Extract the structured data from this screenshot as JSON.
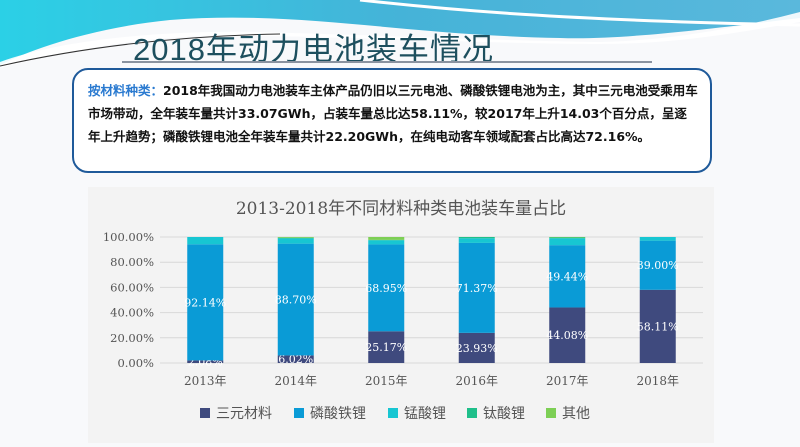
{
  "slide": {
    "title": "2018年动力电池装车情况",
    "summary_keyword": "按材料种类：",
    "summary_text": "2018年我国动力电池装车主体产品仍旧以三元电池、磷酸铁锂电池为主，其中三元电池受乘用车市场带动，全年装车量共计33.07GWh，占装车量总比达58.11%，较2017年上升14.03个百分点，呈逐年上升趋势；磷酸铁锂电池全年装车量共计22.20GWh，在纯电动客车领域配套占比高达72.16%。"
  },
  "chart_data": {
    "type": "bar",
    "stacked": true,
    "title": "2013-2018年不同材料种类电池装车量占比",
    "categories": [
      "2013年",
      "2014年",
      "2015年",
      "2016年",
      "2017年",
      "2018年"
    ],
    "ylim": [
      0,
      100
    ],
    "yticks": [
      "0.00%",
      "20.00%",
      "40.00%",
      "60.00%",
      "80.00%",
      "100.00%"
    ],
    "grid": true,
    "legend_position": "bottom",
    "series": [
      {
        "name": "三元材料",
        "color": "#3f4a7e",
        "values": [
          2.08,
          6.02,
          25.17,
          23.93,
          44.08,
          58.11
        ],
        "labels": [
          "2.08%",
          "6.02%",
          "25.17%",
          "23.93%",
          "44.08%",
          "58.11%"
        ]
      },
      {
        "name": "磷酸铁锂",
        "color": "#0a9bd6",
        "values": [
          92.14,
          88.7,
          68.95,
          71.37,
          49.44,
          39.0
        ],
        "labels": [
          "92.14%",
          "88.70%",
          "68.95%",
          "71.37%",
          "49.44%",
          "39.00%"
        ]
      },
      {
        "name": "锰酸锂",
        "color": "#17c6d2",
        "values": [
          5.78,
          4.2,
          3.3,
          3.7,
          5.5,
          2.89
        ]
      },
      {
        "name": "钛酸锂",
        "color": "#1fbf8a",
        "values": [
          0,
          0.5,
          0.3,
          1.0,
          0.6,
          0
        ]
      },
      {
        "name": "其他",
        "color": "#7dcf55",
        "values": [
          0,
          0.58,
          2.28,
          0,
          0.38,
          0
        ]
      }
    ]
  }
}
